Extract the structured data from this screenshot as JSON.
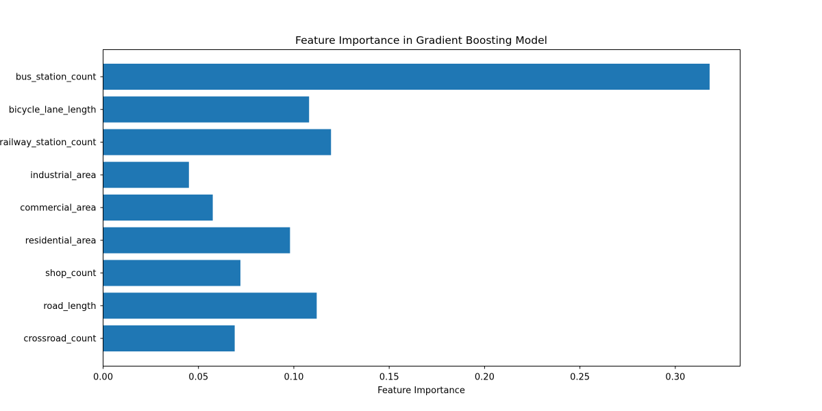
{
  "chart_data": {
    "type": "bar",
    "orientation": "horizontal",
    "title": "Feature Importance in Gradient Boosting Model",
    "xlabel": "Feature Importance",
    "ylabel": "",
    "categories": [
      "bus_station_count",
      "bicycle_lane_length",
      "railway_station_count",
      "industrial_area",
      "commercial_area",
      "residential_area",
      "shop_count",
      "road_length",
      "crossroad_count"
    ],
    "values": [
      0.318,
      0.108,
      0.1195,
      0.045,
      0.0575,
      0.098,
      0.072,
      0.112,
      0.069
    ],
    "xlim": [
      0.0,
      0.334
    ],
    "xticks": [
      0.0,
      0.05,
      0.1,
      0.15,
      0.2,
      0.25,
      0.3
    ],
    "xtick_labels": [
      "0.00",
      "0.05",
      "0.10",
      "0.15",
      "0.20",
      "0.25",
      "0.30"
    ],
    "grid": false,
    "bar_color": "#1f77b4"
  }
}
